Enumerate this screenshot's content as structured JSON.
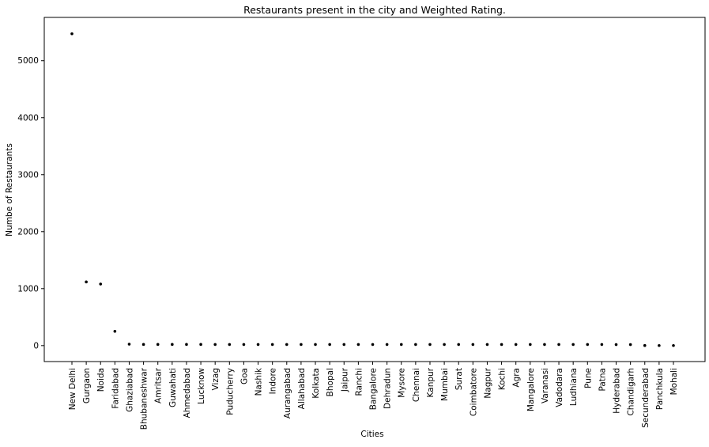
{
  "chart_data": {
    "type": "scatter",
    "title": "Restaurants present in the city and Weighted Rating.",
    "xlabel": "Cities",
    "ylabel": "Numbe of Restaurants",
    "ylim": [
      -280,
      5760
    ],
    "yticks": [
      0,
      1000,
      2000,
      3000,
      4000,
      5000
    ],
    "grid": false,
    "legend": "none",
    "marker_color": "#000000",
    "categories": [
      "New Delhi",
      "Gurgaon",
      "Noida",
      "Faridabad",
      "Ghaziabad",
      "Bhubaneshwar",
      "Amritsar",
      "Guwahati",
      "Ahmedabad",
      "Lucknow",
      "Vizag",
      "Puducherry",
      "Goa",
      "Nashik",
      "Indore",
      "Aurangabad",
      "Allahabad",
      "Kolkata",
      "Bhopal",
      "Jaipur",
      "Ranchi",
      "Bangalore",
      "Dehradun",
      "Mysore",
      "Chennai",
      "Kanpur",
      "Mumbai",
      "Surat",
      "Coimbatore",
      "Nagpur",
      "Kochi",
      "Agra",
      "Mangalore",
      "Varanasi",
      "Vadodara",
      "Ludhiana",
      "Pune",
      "Patna",
      "Hyderabad",
      "Chandigarh",
      "Secunderabad",
      "Panchkula",
      "Mohali"
    ],
    "values": [
      5473,
      1118,
      1080,
      251,
      25,
      21,
      21,
      21,
      21,
      21,
      20,
      20,
      20,
      20,
      20,
      20,
      20,
      20,
      20,
      20,
      20,
      20,
      20,
      20,
      20,
      20,
      20,
      20,
      20,
      20,
      20,
      20,
      20,
      20,
      20,
      20,
      20,
      20,
      18,
      18,
      2,
      1,
      1
    ]
  }
}
